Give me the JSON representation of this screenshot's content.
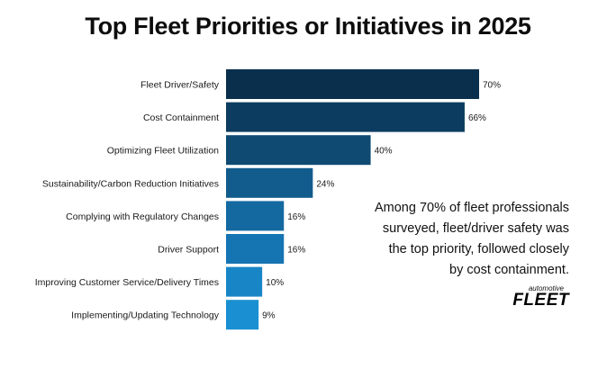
{
  "chart_data": {
    "type": "bar",
    "orientation": "horizontal",
    "title": "Top Fleet Priorities or Initiatives in 2025",
    "categories": [
      "Fleet Driver/Safety",
      "Cost Containment",
      "Optimizing Fleet Utilization",
      "Sustainability/Carbon Reduction Initiatives",
      "Complying with Regulatory Changes",
      "Driver Support",
      "Improving Customer Service/Delivery Times",
      "Implementing/Updating Technology"
    ],
    "values": [
      70,
      66,
      40,
      24,
      16,
      16,
      10,
      9
    ],
    "value_labels": [
      "70%",
      "66%",
      "40%",
      "24%",
      "16%",
      "16%",
      "10%",
      "9%"
    ],
    "bar_colors": [
      "#0a2f4c",
      "#0c3d60",
      "#0e4a72",
      "#115c8c",
      "#1469a1",
      "#1574b2",
      "#1886c6",
      "#1a8fd2"
    ],
    "xlim": [
      0,
      70
    ],
    "grid": false,
    "legend": "none"
  },
  "annotation": {
    "line1": "Among 70% of fleet professionals",
    "line2": "surveyed, fleet/driver safety was",
    "line3": "the top priority, followed closely",
    "line4": "by cost containment."
  },
  "brand": {
    "top": "automotive",
    "main": "FLEET"
  }
}
